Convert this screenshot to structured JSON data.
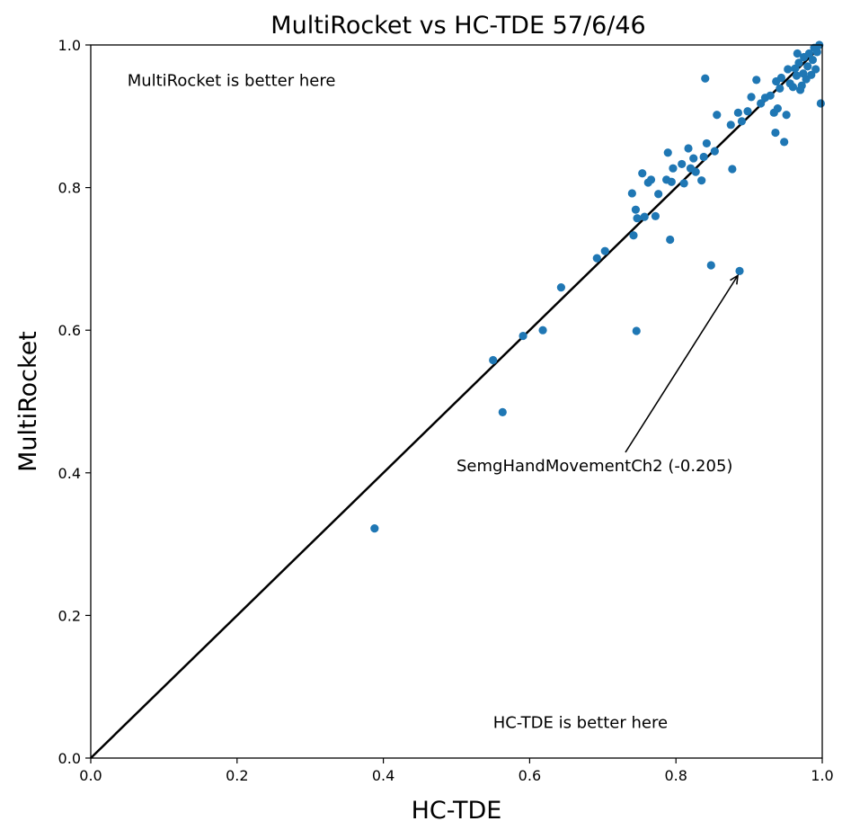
{
  "chart_data": {
    "type": "scatter",
    "title": "MultiRocket vs HC-TDE 57/6/46",
    "xlabel": "HC-TDE",
    "ylabel": "MultiRocket",
    "xlim": [
      0.0,
      1.0
    ],
    "ylim": [
      0.0,
      1.0
    ],
    "xticks": [
      "0.0",
      "0.2",
      "0.4",
      "0.6",
      "0.8",
      "1.0"
    ],
    "yticks": [
      "0.0",
      "0.2",
      "0.4",
      "0.6",
      "0.8",
      "1.0"
    ],
    "grid": false,
    "legend": "none",
    "point_color": "#1f77b4",
    "diagonal_color": "#000000",
    "annotations": {
      "top_left": "MultiRocket is better here",
      "bottom_right": "HC-TDE is better here",
      "arrow_label": "SemgHandMovementCh2 (-0.205)",
      "arrow_text_pos": [
        0.5,
        0.41
      ],
      "arrow_target": [
        0.887,
        0.683
      ]
    },
    "points": [
      [
        0.388,
        0.322
      ],
      [
        0.55,
        0.558
      ],
      [
        0.563,
        0.485
      ],
      [
        0.591,
        0.592
      ],
      [
        0.618,
        0.6
      ],
      [
        0.643,
        0.66
      ],
      [
        0.692,
        0.701
      ],
      [
        0.703,
        0.711
      ],
      [
        0.74,
        0.792
      ],
      [
        0.742,
        0.733
      ],
      [
        0.745,
        0.769
      ],
      [
        0.746,
        0.599
      ],
      [
        0.747,
        0.757
      ],
      [
        0.754,
        0.82
      ],
      [
        0.757,
        0.759
      ],
      [
        0.762,
        0.807
      ],
      [
        0.766,
        0.811
      ],
      [
        0.772,
        0.76
      ],
      [
        0.776,
        0.791
      ],
      [
        0.787,
        0.811
      ],
      [
        0.789,
        0.849
      ],
      [
        0.792,
        0.727
      ],
      [
        0.794,
        0.808
      ],
      [
        0.796,
        0.827
      ],
      [
        0.808,
        0.833
      ],
      [
        0.811,
        0.806
      ],
      [
        0.817,
        0.855
      ],
      [
        0.82,
        0.827
      ],
      [
        0.824,
        0.841
      ],
      [
        0.827,
        0.822
      ],
      [
        0.835,
        0.81
      ],
      [
        0.838,
        0.843
      ],
      [
        0.84,
        0.953
      ],
      [
        0.842,
        0.862
      ],
      [
        0.848,
        0.691
      ],
      [
        0.853,
        0.851
      ],
      [
        0.856,
        0.902
      ],
      [
        0.875,
        0.888
      ],
      [
        0.877,
        0.826
      ],
      [
        0.885,
        0.905
      ],
      [
        0.887,
        0.683
      ],
      [
        0.89,
        0.893
      ],
      [
        0.898,
        0.907
      ],
      [
        0.903,
        0.927
      ],
      [
        0.91,
        0.951
      ],
      [
        0.916,
        0.918
      ],
      [
        0.922,
        0.926
      ],
      [
        0.929,
        0.929
      ],
      [
        0.934,
        0.905
      ],
      [
        0.936,
        0.877
      ],
      [
        0.937,
        0.949
      ],
      [
        0.939,
        0.911
      ],
      [
        0.942,
        0.939
      ],
      [
        0.944,
        0.954
      ],
      [
        0.948,
        0.864
      ],
      [
        0.951,
        0.902
      ],
      [
        0.953,
        0.966
      ],
      [
        0.956,
        0.946
      ],
      [
        0.96,
        0.941
      ],
      [
        0.963,
        0.967
      ],
      [
        0.965,
        0.957
      ],
      [
        0.966,
        0.988
      ],
      [
        0.968,
        0.975
      ],
      [
        0.97,
        0.937
      ],
      [
        0.972,
        0.943
      ],
      [
        0.974,
        0.96
      ],
      [
        0.975,
        0.983
      ],
      [
        0.978,
        0.952
      ],
      [
        0.98,
        0.97
      ],
      [
        0.982,
        0.988
      ],
      [
        0.985,
        0.958
      ],
      [
        0.987,
        0.979
      ],
      [
        0.989,
        0.996
      ],
      [
        0.991,
        0.966
      ],
      [
        0.993,
        0.99
      ],
      [
        0.996,
        1.0
      ],
      [
        0.998,
        0.918
      ]
    ]
  }
}
